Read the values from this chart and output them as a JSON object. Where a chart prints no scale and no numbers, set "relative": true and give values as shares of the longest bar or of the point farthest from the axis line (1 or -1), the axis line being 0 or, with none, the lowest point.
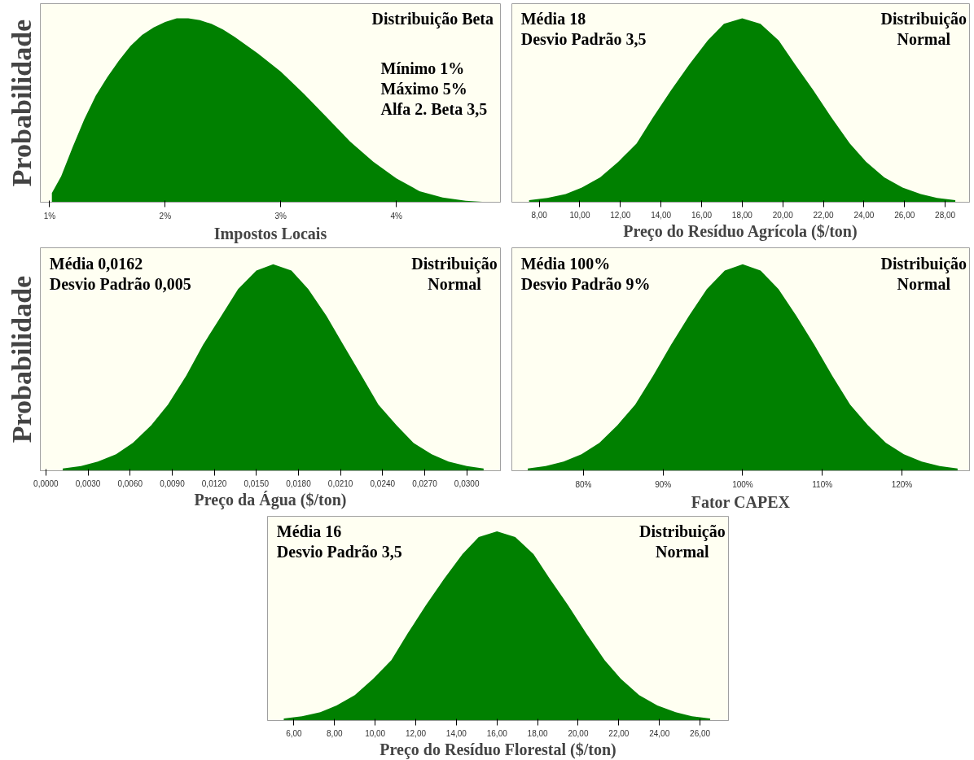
{
  "chart_data": [
    {
      "type": "area",
      "relative": true,
      "tick_labels": "x",
      "ylabel": "Probabilidade",
      "xlabel": "Impostos Locais",
      "annotations": [
        "Distribuição Beta",
        "Mínimo 1%\nMáximo 5%\nAlfa 2. Beta 3,5"
      ],
      "xlim": [
        0.92,
        4.9
      ],
      "xticks": [
        {
          "value": 1,
          "label": "1%"
        },
        {
          "value": 2,
          "label": "2%"
        },
        {
          "value": 3,
          "label": "3%"
        },
        {
          "value": 4,
          "label": "4%"
        }
      ],
      "series": [
        {
          "color": "#008000",
          "x": [
            1.02,
            1.1,
            1.2,
            1.3,
            1.4,
            1.5,
            1.6,
            1.7,
            1.8,
            1.9,
            2.0,
            2.1,
            2.2,
            2.3,
            2.4,
            2.5,
            2.6,
            2.8,
            3.0,
            3.2,
            3.4,
            3.6,
            3.8,
            4.0,
            4.2,
            4.4,
            4.6,
            4.8
          ],
          "values": [
            0.05,
            0.14,
            0.3,
            0.45,
            0.58,
            0.68,
            0.77,
            0.85,
            0.91,
            0.95,
            0.98,
            1.0,
            1.0,
            0.99,
            0.97,
            0.94,
            0.9,
            0.81,
            0.71,
            0.59,
            0.46,
            0.33,
            0.22,
            0.13,
            0.06,
            0.025,
            0.008,
            0.0
          ]
        }
      ]
    },
    {
      "type": "area",
      "relative": true,
      "tick_labels": "x",
      "xlabel": "Preço do Resíduo Agrícola ($/ton)",
      "annotations": [
        "Média 18\nDesvio Padrão 3,5",
        "Distribuição\nNormal"
      ],
      "xlim": [
        6.65,
        29.2
      ],
      "xticks": [
        {
          "value": 8,
          "label": "8,00"
        },
        {
          "value": 10,
          "label": "10,00"
        },
        {
          "value": 12,
          "label": "12,00"
        },
        {
          "value": 14,
          "label": "14,00"
        },
        {
          "value": 16,
          "label": "16,00"
        },
        {
          "value": 18,
          "label": "18,00"
        },
        {
          "value": 20,
          "label": "20,00"
        },
        {
          "value": 22,
          "label": "22,00"
        },
        {
          "value": 24,
          "label": "24,00"
        },
        {
          "value": 26,
          "label": "26,00"
        },
        {
          "value": 28,
          "label": "28,00"
        }
      ],
      "series": [
        {
          "color": "#008000",
          "x": [
            7.5,
            8.4,
            9.3,
            10.1,
            11.0,
            11.9,
            12.8,
            13.6,
            14.5,
            15.4,
            16.3,
            17.1,
            18,
            18.9,
            19.8,
            20.6,
            21.5,
            22.4,
            23.3,
            24.1,
            25,
            25.9,
            26.8,
            27.6,
            28.5
          ],
          "values": [
            0.011,
            0.023,
            0.044,
            0.08,
            0.135,
            0.22,
            0.32,
            0.46,
            0.61,
            0.75,
            0.88,
            0.97,
            1,
            0.97,
            0.88,
            0.75,
            0.61,
            0.46,
            0.32,
            0.22,
            0.135,
            0.08,
            0.044,
            0.023,
            0.011
          ]
        }
      ]
    },
    {
      "type": "area",
      "relative": true,
      "tick_labels": "x",
      "ylabel": "Probabilidade",
      "xlabel": "Preço da Água ($/ton)",
      "annotations": [
        "Média 0,0162\nDesvio Padrão 0,005",
        "Distribuição\nNormal"
      ],
      "xlim": [
        -0.0004,
        0.0324
      ],
      "xticks": [
        {
          "value": 0,
          "label": "0,0000"
        },
        {
          "value": 0.003,
          "label": "0,0030"
        },
        {
          "value": 0.006,
          "label": "0,0060"
        },
        {
          "value": 0.009,
          "label": "0,0090"
        },
        {
          "value": 0.012,
          "label": "0,0120"
        },
        {
          "value": 0.015,
          "label": "0,0150"
        },
        {
          "value": 0.018,
          "label": "0,0180"
        },
        {
          "value": 0.021,
          "label": "0,0210"
        },
        {
          "value": 0.024,
          "label": "0,0240"
        },
        {
          "value": 0.027,
          "label": "0,0270"
        },
        {
          "value": 0.03,
          "label": "0,0300"
        }
      ],
      "series": [
        {
          "color": "#008000",
          "x": [
            0.0012,
            0.0025,
            0.0037,
            0.005,
            0.0062,
            0.0075,
            0.0087,
            0.01,
            0.0112,
            0.0125,
            0.0137,
            0.015,
            0.0162,
            0.0175,
            0.0187,
            0.02,
            0.0212,
            0.0225,
            0.0237,
            0.025,
            0.0262,
            0.0275,
            0.0287,
            0.03,
            0.0312
          ],
          "values": [
            0.011,
            0.023,
            0.044,
            0.08,
            0.135,
            0.22,
            0.32,
            0.46,
            0.61,
            0.75,
            0.88,
            0.97,
            1,
            0.97,
            0.88,
            0.75,
            0.61,
            0.46,
            0.32,
            0.22,
            0.135,
            0.08,
            0.044,
            0.023,
            0.011
          ]
        }
      ]
    },
    {
      "type": "area",
      "relative": true,
      "tick_labels": "x",
      "xlabel": "Fator CAPEX",
      "annotations": [
        "Média 100%\nDesvio Padrão 9%",
        "Distribuição\nNormal"
      ],
      "xlim": [
        71,
        128.5
      ],
      "xticks": [
        {
          "value": 80,
          "label": "80%"
        },
        {
          "value": 90,
          "label": "90%"
        },
        {
          "value": 100,
          "label": "100%"
        },
        {
          "value": 110,
          "label": "110%"
        },
        {
          "value": 120,
          "label": "120%"
        }
      ],
      "series": [
        {
          "color": "#008000",
          "x": [
            73,
            75.25,
            77.5,
            79.75,
            82,
            84.25,
            86.5,
            88.75,
            91,
            93.25,
            95.5,
            97.75,
            100,
            102.25,
            104.5,
            106.75,
            109,
            111.25,
            113.5,
            115.75,
            118,
            120.25,
            122.5,
            124.75,
            127
          ],
          "values": [
            0.011,
            0.023,
            0.044,
            0.08,
            0.135,
            0.22,
            0.32,
            0.46,
            0.61,
            0.75,
            0.88,
            0.97,
            1,
            0.97,
            0.88,
            0.75,
            0.61,
            0.46,
            0.32,
            0.22,
            0.135,
            0.08,
            0.044,
            0.023,
            0.011
          ]
        }
      ]
    },
    {
      "type": "area",
      "relative": true,
      "tick_labels": "x",
      "xlabel": "Preço do Resíduo Florestal ($/ton)",
      "annotations": [
        "Média 16\nDesvio Padrão 3,5",
        "Distribuição\nNormal"
      ],
      "xlim": [
        4.7,
        27.4
      ],
      "xticks": [
        {
          "value": 6,
          "label": "6,00"
        },
        {
          "value": 8,
          "label": "8,00"
        },
        {
          "value": 10,
          "label": "10,00"
        },
        {
          "value": 12,
          "label": "12,00"
        },
        {
          "value": 14,
          "label": "14,00"
        },
        {
          "value": 16,
          "label": "16,00"
        },
        {
          "value": 18,
          "label": "18,00"
        },
        {
          "value": 20,
          "label": "20,00"
        },
        {
          "value": 22,
          "label": "22,00"
        },
        {
          "value": 24,
          "label": "24,00"
        },
        {
          "value": 26,
          "label": "26,00"
        }
      ],
      "series": [
        {
          "color": "#008000",
          "x": [
            5.5,
            6.4,
            7.3,
            8.1,
            9,
            9.9,
            10.8,
            11.6,
            12.5,
            13.4,
            14.3,
            15.1,
            16,
            16.9,
            17.8,
            18.6,
            19.5,
            20.4,
            21.3,
            22.1,
            23,
            23.9,
            24.8,
            25.6,
            26.5
          ],
          "values": [
            0.011,
            0.023,
            0.044,
            0.08,
            0.135,
            0.22,
            0.32,
            0.46,
            0.61,
            0.75,
            0.88,
            0.97,
            1,
            0.97,
            0.88,
            0.75,
            0.61,
            0.46,
            0.32,
            0.22,
            0.135,
            0.08,
            0.044,
            0.023,
            0.011
          ]
        }
      ]
    }
  ]
}
